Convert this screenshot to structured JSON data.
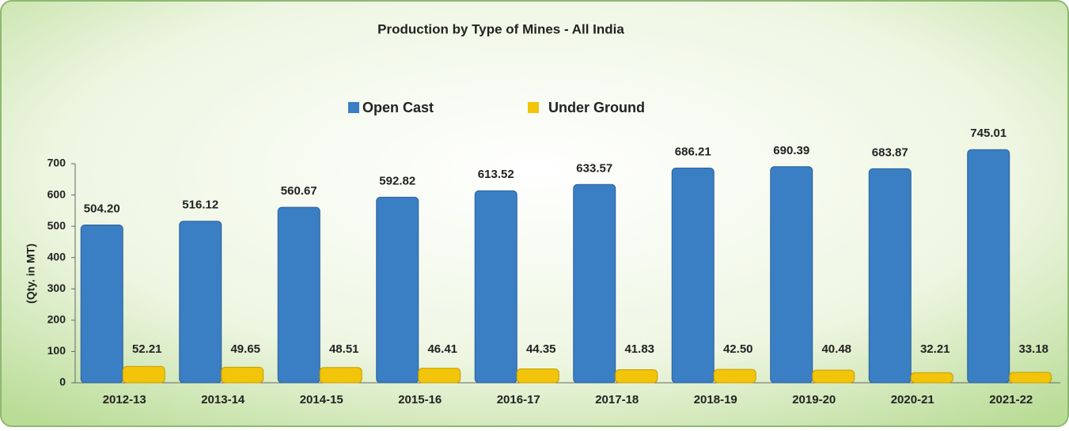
{
  "chart_data": {
    "type": "bar",
    "title": "Production by Type of Mines - All India",
    "y_label": "(Qty. in MT)",
    "categories": [
      "2012-13",
      "2013-14",
      "2014-15",
      "2015-16",
      "2016-17",
      "2017-18",
      "2018-19",
      "2019-20",
      "2020-21",
      "2021-22"
    ],
    "series": [
      {
        "name": "Open Cast",
        "color": "#3a7fc4",
        "values": [
          504.2,
          516.12,
          560.67,
          592.82,
          613.52,
          633.57,
          686.21,
          690.39,
          683.87,
          745.01
        ],
        "value_labels": [
          "504.20",
          "516.12",
          "560.67",
          "592.82",
          "613.52",
          "633.57",
          "686.21",
          "690.39",
          "683.87",
          "745.01"
        ]
      },
      {
        "name": "Under Ground",
        "color": "#f2c40a",
        "values": [
          52.21,
          49.65,
          48.51,
          46.41,
          44.35,
          41.83,
          42.5,
          40.48,
          32.21,
          33.18
        ],
        "value_labels": [
          "52.21",
          "49.65",
          "48.51",
          "46.41",
          "44.35",
          "41.83",
          "42.50",
          "40.48",
          "32.21",
          "33.18"
        ]
      }
    ],
    "ylim": [
      0,
      700
    ],
    "yticks": [
      0,
      100,
      200,
      300,
      400,
      500,
      600,
      700
    ],
    "legend": "top"
  }
}
